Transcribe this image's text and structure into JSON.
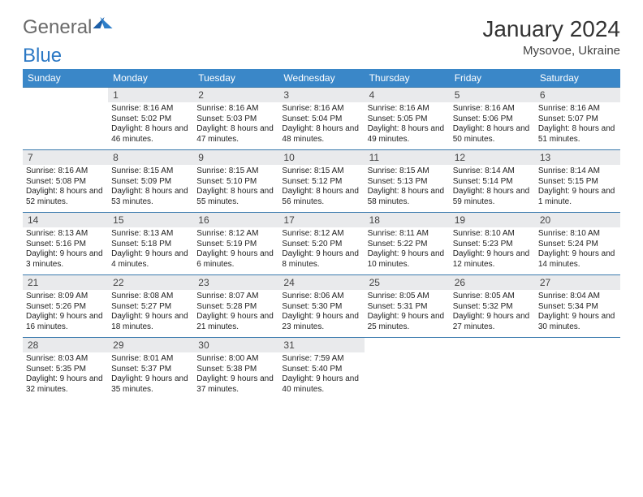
{
  "logo": {
    "part1": "General",
    "part2": "Blue"
  },
  "title": "January 2024",
  "subtitle": "Mysovoe, Ukraine",
  "colors": {
    "header_bg": "#3a87c8",
    "header_text": "#ffffff",
    "daynum_bg": "#e9eaec",
    "row_border": "#3a7aad",
    "logo_general": "#6a6a6a",
    "logo_blue": "#2b78c4",
    "title_color": "#333333",
    "body_text": "#222222"
  },
  "day_headers": [
    "Sunday",
    "Monday",
    "Tuesday",
    "Wednesday",
    "Thursday",
    "Friday",
    "Saturday"
  ],
  "weeks": [
    [
      null,
      {
        "n": "1",
        "sr": "8:16 AM",
        "ss": "5:02 PM",
        "dl": "8 hours and 46 minutes."
      },
      {
        "n": "2",
        "sr": "8:16 AM",
        "ss": "5:03 PM",
        "dl": "8 hours and 47 minutes."
      },
      {
        "n": "3",
        "sr": "8:16 AM",
        "ss": "5:04 PM",
        "dl": "8 hours and 48 minutes."
      },
      {
        "n": "4",
        "sr": "8:16 AM",
        "ss": "5:05 PM",
        "dl": "8 hours and 49 minutes."
      },
      {
        "n": "5",
        "sr": "8:16 AM",
        "ss": "5:06 PM",
        "dl": "8 hours and 50 minutes."
      },
      {
        "n": "6",
        "sr": "8:16 AM",
        "ss": "5:07 PM",
        "dl": "8 hours and 51 minutes."
      }
    ],
    [
      {
        "n": "7",
        "sr": "8:16 AM",
        "ss": "5:08 PM",
        "dl": "8 hours and 52 minutes."
      },
      {
        "n": "8",
        "sr": "8:15 AM",
        "ss": "5:09 PM",
        "dl": "8 hours and 53 minutes."
      },
      {
        "n": "9",
        "sr": "8:15 AM",
        "ss": "5:10 PM",
        "dl": "8 hours and 55 minutes."
      },
      {
        "n": "10",
        "sr": "8:15 AM",
        "ss": "5:12 PM",
        "dl": "8 hours and 56 minutes."
      },
      {
        "n": "11",
        "sr": "8:15 AM",
        "ss": "5:13 PM",
        "dl": "8 hours and 58 minutes."
      },
      {
        "n": "12",
        "sr": "8:14 AM",
        "ss": "5:14 PM",
        "dl": "8 hours and 59 minutes."
      },
      {
        "n": "13",
        "sr": "8:14 AM",
        "ss": "5:15 PM",
        "dl": "9 hours and 1 minute."
      }
    ],
    [
      {
        "n": "14",
        "sr": "8:13 AM",
        "ss": "5:16 PM",
        "dl": "9 hours and 3 minutes."
      },
      {
        "n": "15",
        "sr": "8:13 AM",
        "ss": "5:18 PM",
        "dl": "9 hours and 4 minutes."
      },
      {
        "n": "16",
        "sr": "8:12 AM",
        "ss": "5:19 PM",
        "dl": "9 hours and 6 minutes."
      },
      {
        "n": "17",
        "sr": "8:12 AM",
        "ss": "5:20 PM",
        "dl": "9 hours and 8 minutes."
      },
      {
        "n": "18",
        "sr": "8:11 AM",
        "ss": "5:22 PM",
        "dl": "9 hours and 10 minutes."
      },
      {
        "n": "19",
        "sr": "8:10 AM",
        "ss": "5:23 PM",
        "dl": "9 hours and 12 minutes."
      },
      {
        "n": "20",
        "sr": "8:10 AM",
        "ss": "5:24 PM",
        "dl": "9 hours and 14 minutes."
      }
    ],
    [
      {
        "n": "21",
        "sr": "8:09 AM",
        "ss": "5:26 PM",
        "dl": "9 hours and 16 minutes."
      },
      {
        "n": "22",
        "sr": "8:08 AM",
        "ss": "5:27 PM",
        "dl": "9 hours and 18 minutes."
      },
      {
        "n": "23",
        "sr": "8:07 AM",
        "ss": "5:28 PM",
        "dl": "9 hours and 21 minutes."
      },
      {
        "n": "24",
        "sr": "8:06 AM",
        "ss": "5:30 PM",
        "dl": "9 hours and 23 minutes."
      },
      {
        "n": "25",
        "sr": "8:05 AM",
        "ss": "5:31 PM",
        "dl": "9 hours and 25 minutes."
      },
      {
        "n": "26",
        "sr": "8:05 AM",
        "ss": "5:32 PM",
        "dl": "9 hours and 27 minutes."
      },
      {
        "n": "27",
        "sr": "8:04 AM",
        "ss": "5:34 PM",
        "dl": "9 hours and 30 minutes."
      }
    ],
    [
      {
        "n": "28",
        "sr": "8:03 AM",
        "ss": "5:35 PM",
        "dl": "9 hours and 32 minutes."
      },
      {
        "n": "29",
        "sr": "8:01 AM",
        "ss": "5:37 PM",
        "dl": "9 hours and 35 minutes."
      },
      {
        "n": "30",
        "sr": "8:00 AM",
        "ss": "5:38 PM",
        "dl": "9 hours and 37 minutes."
      },
      {
        "n": "31",
        "sr": "7:59 AM",
        "ss": "5:40 PM",
        "dl": "9 hours and 40 minutes."
      },
      null,
      null,
      null
    ]
  ],
  "labels": {
    "sunrise": "Sunrise:",
    "sunset": "Sunset:",
    "daylight": "Daylight:"
  }
}
